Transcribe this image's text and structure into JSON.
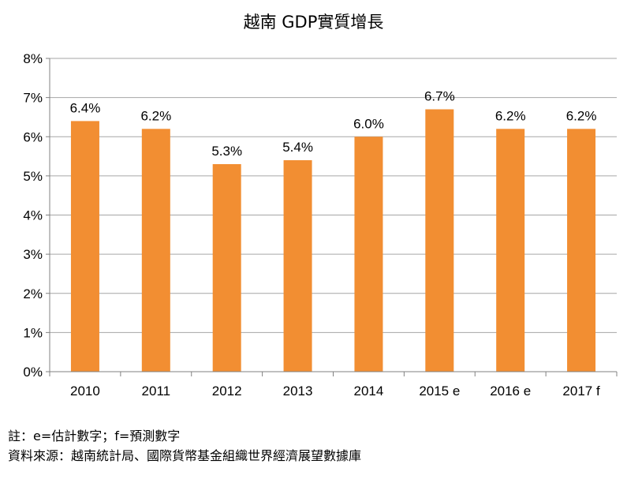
{
  "chart_data": {
    "type": "bar",
    "title": "越南 GDP實質增長",
    "categories": [
      "2010",
      "2011",
      "2012",
      "2013",
      "2014",
      "2015 e",
      "2016 e",
      "2017 f"
    ],
    "values": [
      6.4,
      6.2,
      5.3,
      5.4,
      6.0,
      6.7,
      6.2,
      6.2
    ],
    "value_labels": [
      "6.4%",
      "6.2%",
      "5.3%",
      "5.4%",
      "6.0%",
      "6.7%",
      "6.2%",
      "6.2%"
    ],
    "ylim": [
      0,
      8
    ],
    "yticks": [
      0,
      1,
      2,
      3,
      4,
      5,
      6,
      7,
      8
    ],
    "ytick_labels": [
      "0%",
      "1%",
      "2%",
      "3%",
      "4%",
      "5%",
      "6%",
      "7%",
      "8%"
    ],
    "xlabel": "",
    "ylabel": "",
    "grid": true,
    "legend": "none",
    "bar_color": "#F28E32",
    "grid_color": "#A6A6A6",
    "axis_color": "#808080"
  },
  "notes": {
    "line1": "註：e=估計數字；f=預測數字",
    "line2": "資料來源：越南統計局、國際貨幣基金組織世界經濟展望數據庫"
  }
}
